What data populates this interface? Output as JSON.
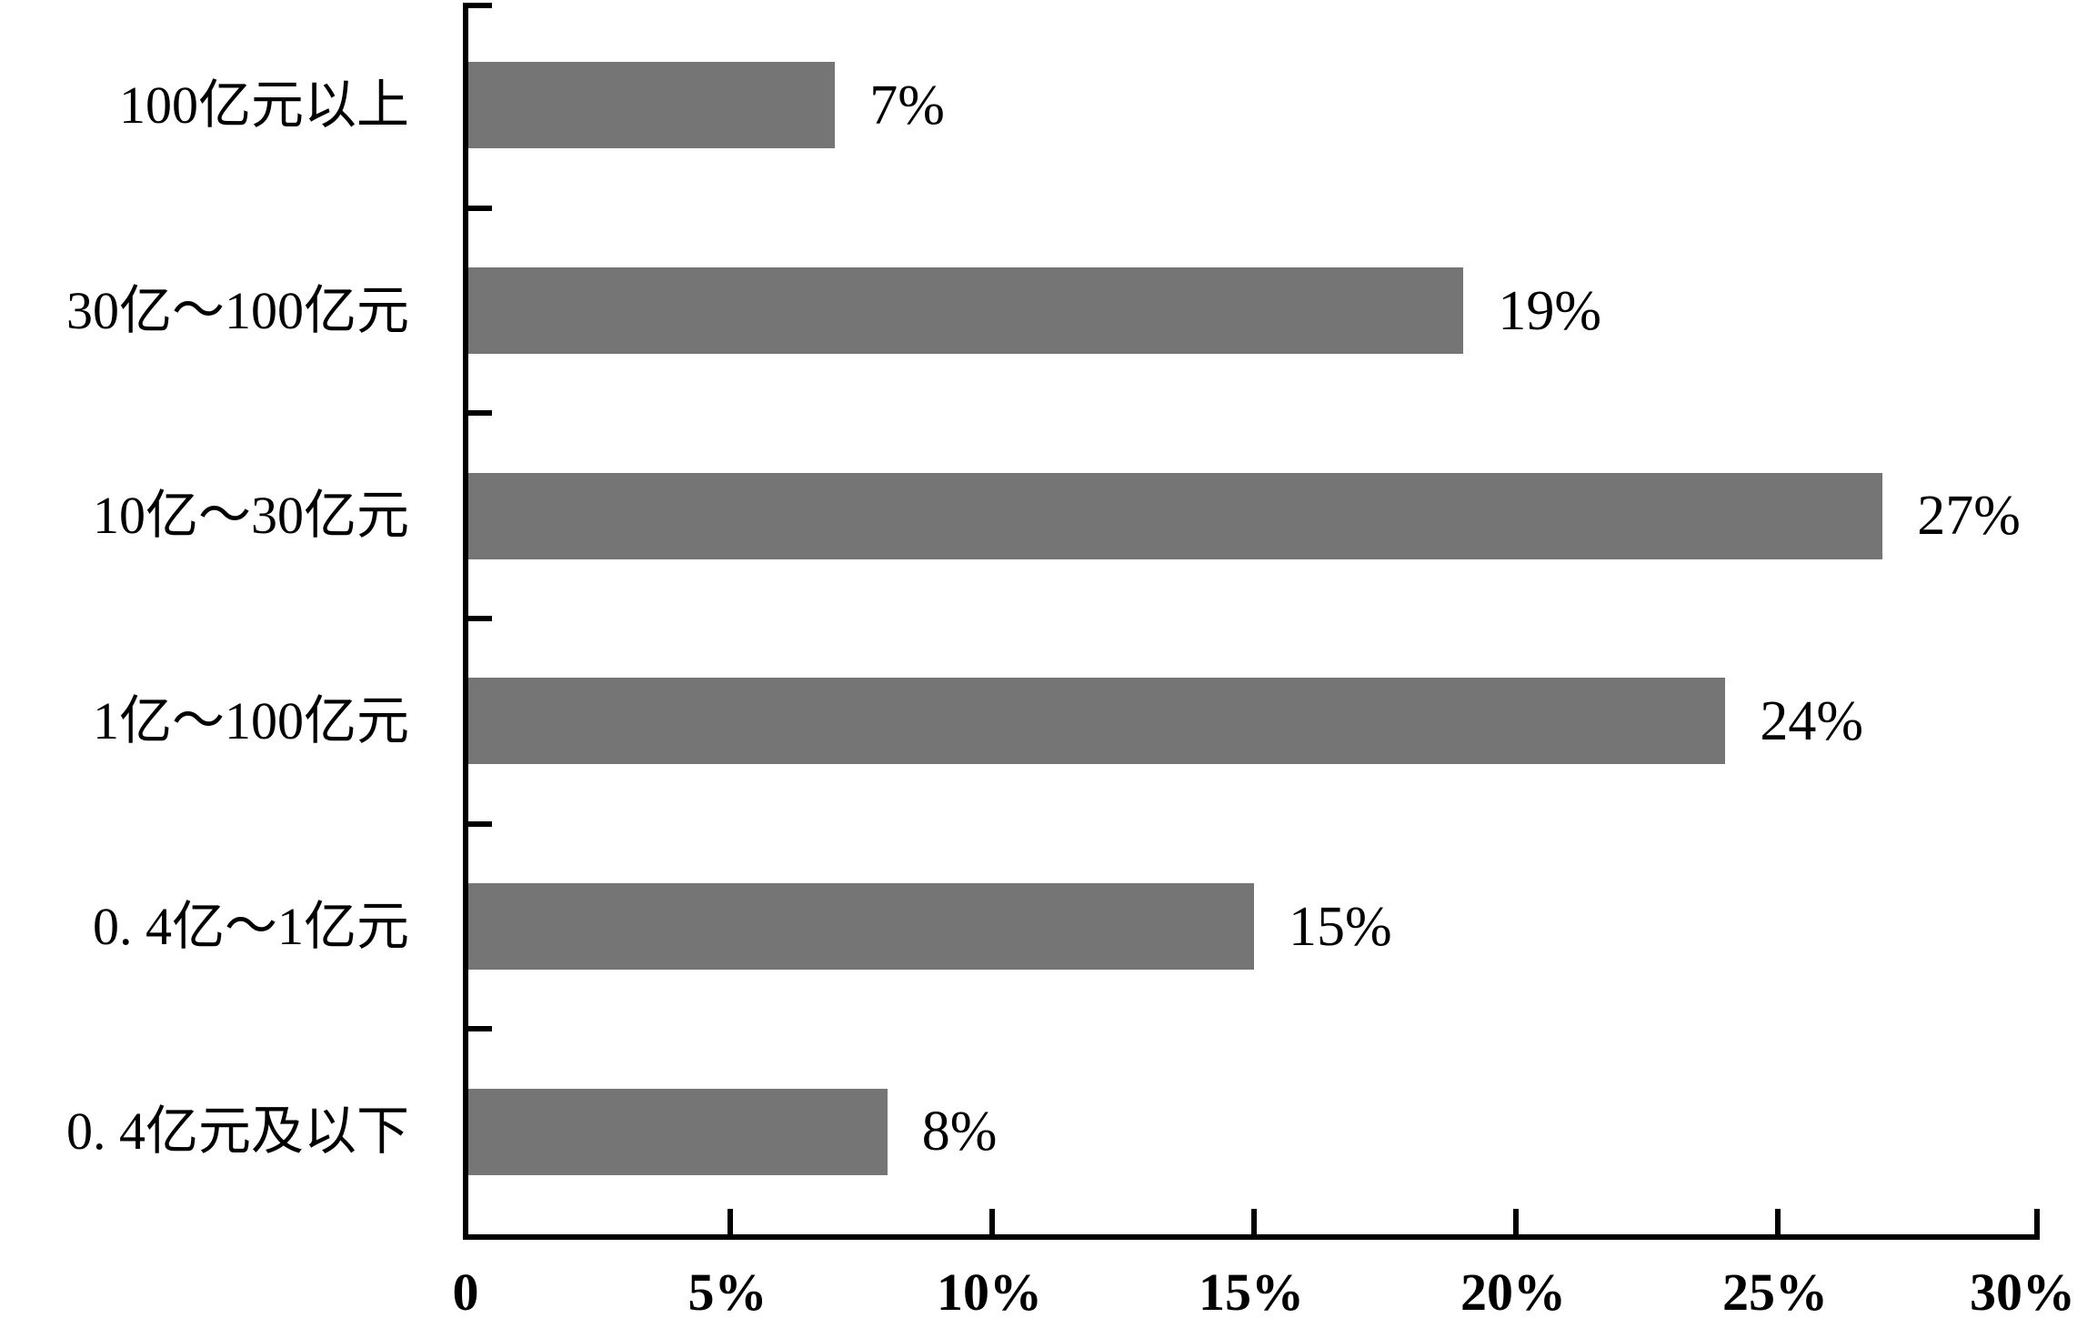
{
  "chart_data": {
    "type": "bar",
    "orientation": "horizontal",
    "title": "",
    "categories": [
      "100亿元以上",
      "30亿～100亿元",
      "10亿～30亿元",
      "1亿～100亿元",
      "0. 4亿～1亿元",
      "0. 4亿元及以下"
    ],
    "values": [
      7,
      19,
      27,
      24,
      15,
      8
    ],
    "value_labels": [
      "7%",
      "19%",
      "27%",
      "24%",
      "15%",
      "8%"
    ],
    "x_tick_labels": [
      "0",
      "5%",
      "10%",
      "15%",
      "20%",
      "25%",
      "30%"
    ],
    "xlim": [
      0,
      30
    ],
    "grid": false,
    "legend": false,
    "bar_color": "#757575",
    "axis_color": "#000000",
    "text_color": "#000000"
  }
}
